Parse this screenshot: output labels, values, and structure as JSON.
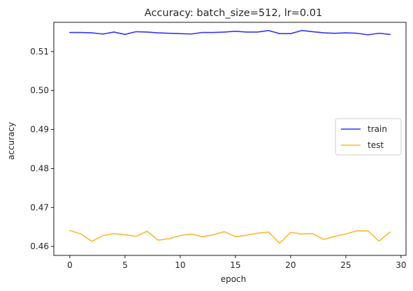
{
  "chart_data": {
    "type": "line",
    "title": "Accuracy: batch_size=512, lr=0.01",
    "xlabel": "epoch",
    "ylabel": "accuracy",
    "xlim": [
      -1.45,
      30.45
    ],
    "ylim": [
      0.4577,
      0.5175
    ],
    "xticks": [
      0,
      5,
      10,
      15,
      20,
      25,
      30
    ],
    "yticks": [
      0.46,
      0.47,
      0.48,
      0.49,
      0.5,
      0.51
    ],
    "xtick_labels": [
      "0",
      "5",
      "10",
      "15",
      "20",
      "25",
      "30"
    ],
    "ytick_labels": [
      "0.46",
      "0.47",
      "0.48",
      "0.49",
      "0.50",
      "0.51"
    ],
    "grid": false,
    "legend": {
      "position": "center-right"
    },
    "x": [
      0,
      1,
      2,
      3,
      4,
      5,
      6,
      7,
      8,
      9,
      10,
      11,
      12,
      13,
      14,
      15,
      16,
      17,
      18,
      19,
      20,
      21,
      22,
      23,
      24,
      25,
      26,
      27,
      28,
      29
    ],
    "series": [
      {
        "name": "train",
        "color": "#0000ff",
        "values": [
          0.5149,
          0.5149,
          0.5148,
          0.5145,
          0.515,
          0.5144,
          0.5151,
          0.515,
          0.5148,
          0.5147,
          0.5146,
          0.5145,
          0.5149,
          0.5149,
          0.515,
          0.5152,
          0.515,
          0.515,
          0.5154,
          0.5146,
          0.5146,
          0.5154,
          0.5151,
          0.5148,
          0.5147,
          0.5148,
          0.5147,
          0.5143,
          0.5147,
          0.5144
        ]
      },
      {
        "name": "test",
        "color": "#ffa500",
        "values": [
          0.4641,
          0.4632,
          0.4613,
          0.4628,
          0.4633,
          0.463,
          0.4626,
          0.4639,
          0.4616,
          0.462,
          0.4628,
          0.4632,
          0.4625,
          0.463,
          0.4638,
          0.4625,
          0.4629,
          0.4634,
          0.4637,
          0.4608,
          0.4636,
          0.4632,
          0.4633,
          0.4618,
          0.4626,
          0.4632,
          0.464,
          0.464,
          0.4614,
          0.4637
        ]
      }
    ]
  }
}
